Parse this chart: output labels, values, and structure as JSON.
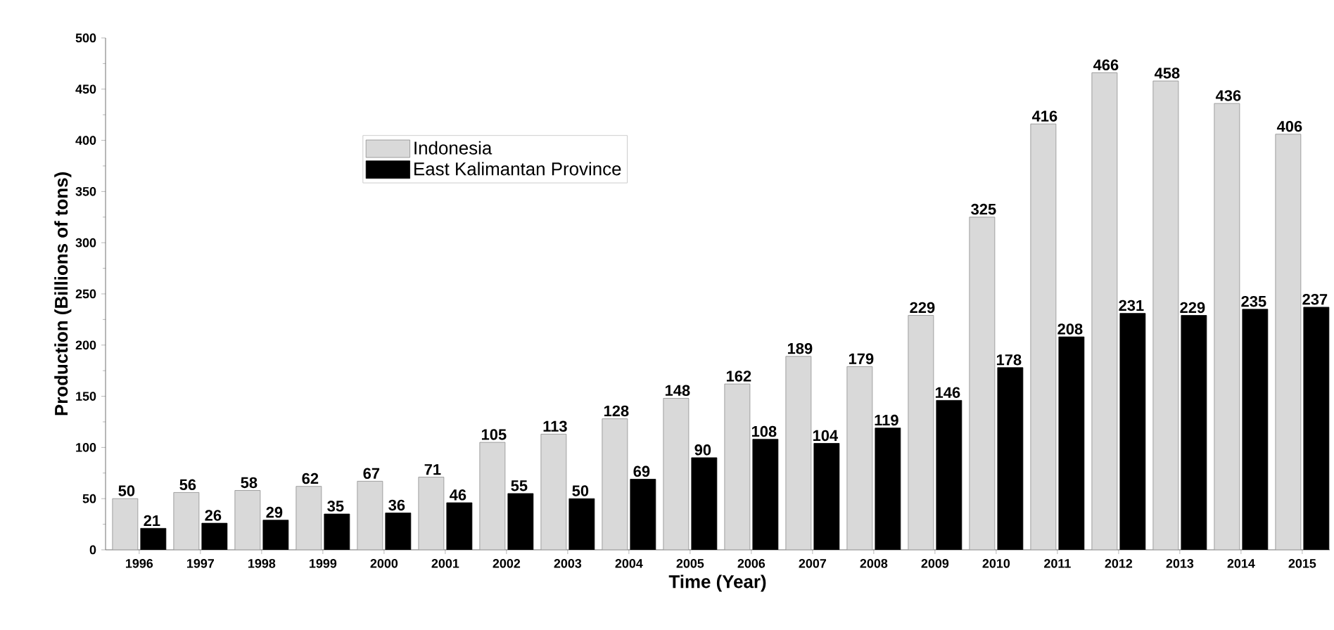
{
  "chart_data": {
    "type": "bar",
    "xlabel": "Time  (Year)",
    "ylabel": "Production (Billions  of  tons)",
    "categories": [
      "1996",
      "1997",
      "1998",
      "1999",
      "2000",
      "2001",
      "2002",
      "2003",
      "2004",
      "2005",
      "2006",
      "2007",
      "2008",
      "2009",
      "2010",
      "2011",
      "2012",
      "2013",
      "2014",
      "2015"
    ],
    "series": [
      {
        "name": "Indonesia",
        "color": "#d9d9d9",
        "values": [
          50,
          56,
          58,
          62,
          67,
          71,
          105,
          113,
          128,
          148,
          162,
          189,
          179,
          229,
          325,
          416,
          466,
          458,
          436,
          406
        ]
      },
      {
        "name": "East Kalimantan Province",
        "color": "#000000",
        "values": [
          21,
          26,
          29,
          35,
          36,
          46,
          55,
          50,
          69,
          90,
          108,
          104,
          119,
          146,
          178,
          208,
          231,
          229,
          235,
          237
        ]
      }
    ],
    "ylim": [
      0,
      500
    ],
    "yticks": [
      0,
      50,
      100,
      150,
      200,
      250,
      300,
      350,
      400,
      450,
      500
    ],
    "legend": "top left",
    "data_labels": true
  }
}
